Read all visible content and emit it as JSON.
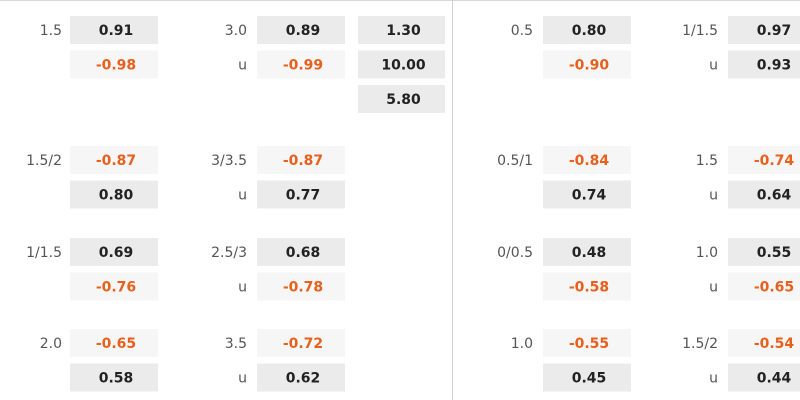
{
  "groups": [
    {
      "handicap": {
        "line": "1.5",
        "home": "0.91",
        "away": "-0.98"
      },
      "over_under": {
        "line": "3.0",
        "over": "0.89",
        "under_label": "u",
        "under": "-0.99"
      },
      "one_x_two": [
        "1.30",
        "10.00",
        "5.80"
      ],
      "first_half_handicap": {
        "line": "0.5",
        "home": "0.80",
        "away": "-0.90"
      },
      "first_half_over_under": {
        "line": "1/1.5",
        "over": "0.97",
        "under_label": "u",
        "under": "0.93"
      }
    },
    {
      "handicap": {
        "line": "1.5/2",
        "home": "-0.87",
        "away": "0.80"
      },
      "over_under": {
        "line": "3/3.5",
        "over": "-0.87",
        "under_label": "u",
        "under": "0.77"
      },
      "first_half_handicap": {
        "line": "0.5/1",
        "home": "-0.84",
        "away": "0.74"
      },
      "first_half_over_under": {
        "line": "1.5",
        "over": "-0.74",
        "under_label": "u",
        "under": "0.64"
      }
    },
    {
      "handicap": {
        "line": "1/1.5",
        "home": "0.69",
        "away": "-0.76"
      },
      "over_under": {
        "line": "2.5/3",
        "over": "0.68",
        "under_label": "u",
        "under": "-0.78"
      },
      "first_half_handicap": {
        "line": "0/0.5",
        "home": "0.48",
        "away": "-0.58"
      },
      "first_half_over_under": {
        "line": "1.0",
        "over": "0.55",
        "under_label": "u",
        "under": "-0.65"
      }
    },
    {
      "handicap": {
        "line": "2.0",
        "home": "-0.65",
        "away": "0.58"
      },
      "over_under": {
        "line": "3.5",
        "over": "-0.72",
        "under_label": "u",
        "under": "0.62"
      },
      "first_half_handicap": {
        "line": "1.0",
        "home": "-0.55",
        "away": "0.45"
      },
      "first_half_over_under": {
        "line": "1.5/2",
        "over": "-0.54",
        "under_label": "u",
        "under": "0.44"
      }
    }
  ]
}
